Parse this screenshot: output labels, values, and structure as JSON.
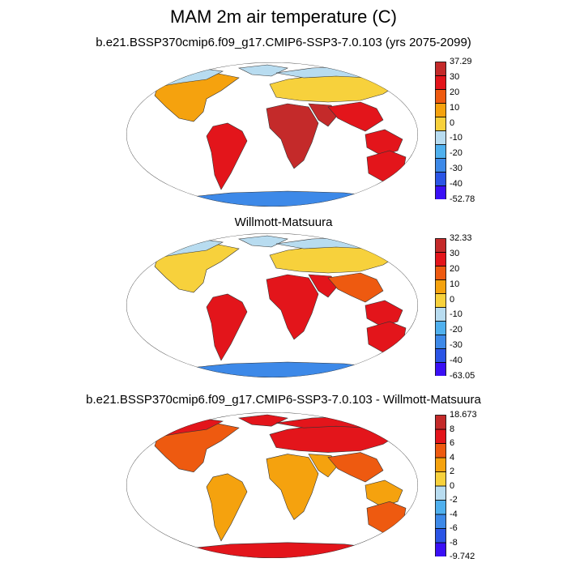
{
  "title": "MAM 2m air temperature (C)",
  "panels": [
    {
      "id": "model",
      "title": "b.e21.BSSP370cmip6.f09_g17.CMIP6-SSP3-7.0.103 (yrs 2075-2099)",
      "colorbar": {
        "colors": [
          "#3a10f5",
          "#2b55e6",
          "#3d89e8",
          "#4fb0ee",
          "#b8dcf0",
          "#f7d13c",
          "#f5a20e",
          "#ee5a10",
          "#e3151b",
          "#c42a2a"
        ],
        "labels": [
          "37.29",
          "30",
          "20",
          "10",
          "0",
          "-10",
          "-20",
          "-30",
          "-40",
          "-52.78"
        ]
      }
    },
    {
      "id": "obs",
      "title": "Willmott-Matsuura",
      "colorbar": {
        "colors": [
          "#3a10f5",
          "#2b55e6",
          "#3d89e8",
          "#4fb0ee",
          "#b8dcf0",
          "#f7d13c",
          "#f5a20e",
          "#ee5a10",
          "#e3151b",
          "#c42a2a"
        ],
        "labels": [
          "32.33",
          "30",
          "20",
          "10",
          "0",
          "-10",
          "-20",
          "-30",
          "-40",
          "-63.05"
        ]
      }
    },
    {
      "id": "diff",
      "title": "b.e21.BSSP370cmip6.f09_g17.CMIP6-SSP3-7.0.103 - Willmott-Matsuura",
      "colorbar": {
        "colors": [
          "#3a10f5",
          "#2b55e6",
          "#3d89e8",
          "#4fb0ee",
          "#b8dcf0",
          "#f7d13c",
          "#f5a20e",
          "#ee5a10",
          "#e3151b",
          "#c42a2a"
        ],
        "labels": [
          "18.673",
          "8",
          "6",
          "4",
          "2",
          "0",
          "-2",
          "-4",
          "-6",
          "-8",
          "-9.742"
        ]
      }
    }
  ]
}
